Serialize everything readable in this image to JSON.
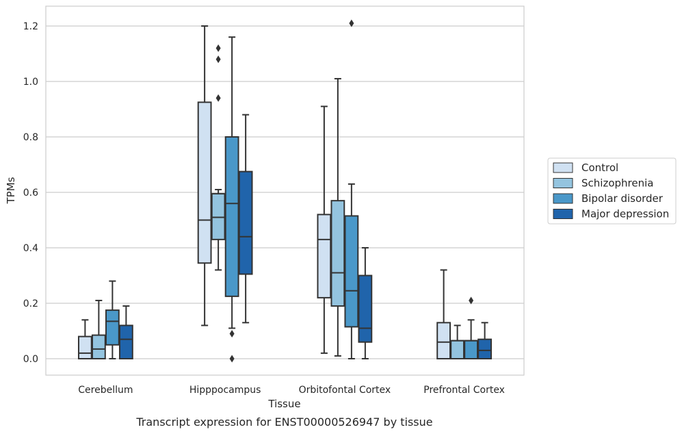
{
  "chart_data": {
    "type": "box",
    "caption": "Transcript expression for ENST00000526947 by tissue",
    "xlabel": "Tissue",
    "ylabel": "TPMs",
    "ylim": [
      -0.06,
      1.27
    ],
    "yticks": [
      0.0,
      0.2,
      0.4,
      0.6,
      0.8,
      1.0,
      1.2
    ],
    "ytick_labels": [
      "0.0",
      "0.2",
      "0.4",
      "0.6",
      "0.8",
      "1.0",
      "1.2"
    ],
    "grid": true,
    "legend_position": "right",
    "categories": [
      "Cerebellum",
      "Hipppocampus",
      "Orbitofontal Cortex",
      "Prefrontal Cortex"
    ],
    "series": [
      {
        "name": "Control",
        "color": "#d0e1f2",
        "boxes": [
          {
            "q1": 0.0,
            "median": 0.02,
            "q3": 0.08,
            "whisker_low": 0.0,
            "whisker_high": 0.14,
            "outliers": []
          },
          {
            "q1": 0.345,
            "median": 0.5,
            "q3": 0.925,
            "whisker_low": 0.12,
            "whisker_high": 1.2,
            "outliers": []
          },
          {
            "q1": 0.22,
            "median": 0.43,
            "q3": 0.52,
            "whisker_low": 0.02,
            "whisker_high": 0.91,
            "outliers": []
          },
          {
            "q1": 0.0,
            "median": 0.06,
            "q3": 0.13,
            "whisker_low": 0.0,
            "whisker_high": 0.32,
            "outliers": []
          }
        ]
      },
      {
        "name": "Schizophrenia",
        "color": "#94c4df",
        "boxes": [
          {
            "q1": 0.0,
            "median": 0.035,
            "q3": 0.085,
            "whisker_low": 0.0,
            "whisker_high": 0.21,
            "outliers": []
          },
          {
            "q1": 0.43,
            "median": 0.51,
            "q3": 0.595,
            "whisker_low": 0.32,
            "whisker_high": 0.61,
            "outliers": [
              0.94,
              1.08,
              1.12
            ]
          },
          {
            "q1": 0.19,
            "median": 0.31,
            "q3": 0.57,
            "whisker_low": 0.01,
            "whisker_high": 1.01,
            "outliers": []
          },
          {
            "q1": 0.0,
            "median": 0.065,
            "q3": 0.065,
            "whisker_low": 0.0,
            "whisker_high": 0.12,
            "outliers": []
          }
        ]
      },
      {
        "name": "Bipolar disorder",
        "color": "#4a98c9",
        "boxes": [
          {
            "q1": 0.05,
            "median": 0.135,
            "q3": 0.175,
            "whisker_low": 0.0,
            "whisker_high": 0.28,
            "outliers": []
          },
          {
            "q1": 0.225,
            "median": 0.56,
            "q3": 0.8,
            "whisker_low": 0.11,
            "whisker_high": 1.16,
            "outliers": [
              0.0,
              0.09
            ]
          },
          {
            "q1": 0.115,
            "median": 0.245,
            "q3": 0.515,
            "whisker_low": 0.0,
            "whisker_high": 0.63,
            "outliers": [
              1.21
            ]
          },
          {
            "q1": 0.0,
            "median": 0.065,
            "q3": 0.065,
            "whisker_low": 0.0,
            "whisker_high": 0.14,
            "outliers": [
              0.21
            ]
          }
        ]
      },
      {
        "name": "Major depression",
        "color": "#2064ab",
        "boxes": [
          {
            "q1": 0.0,
            "median": 0.07,
            "q3": 0.12,
            "whisker_low": 0.0,
            "whisker_high": 0.19,
            "outliers": []
          },
          {
            "q1": 0.305,
            "median": 0.44,
            "q3": 0.675,
            "whisker_low": 0.13,
            "whisker_high": 0.88,
            "outliers": []
          },
          {
            "q1": 0.06,
            "median": 0.11,
            "q3": 0.3,
            "whisker_low": 0.0,
            "whisker_high": 0.4,
            "outliers": []
          },
          {
            "q1": 0.0,
            "median": 0.03,
            "q3": 0.07,
            "whisker_low": 0.0,
            "whisker_high": 0.13,
            "outliers": []
          }
        ]
      }
    ]
  },
  "style": {
    "grid_color": "#cccccc",
    "frame_color": "#cccccc",
    "line_color": "#333333"
  }
}
